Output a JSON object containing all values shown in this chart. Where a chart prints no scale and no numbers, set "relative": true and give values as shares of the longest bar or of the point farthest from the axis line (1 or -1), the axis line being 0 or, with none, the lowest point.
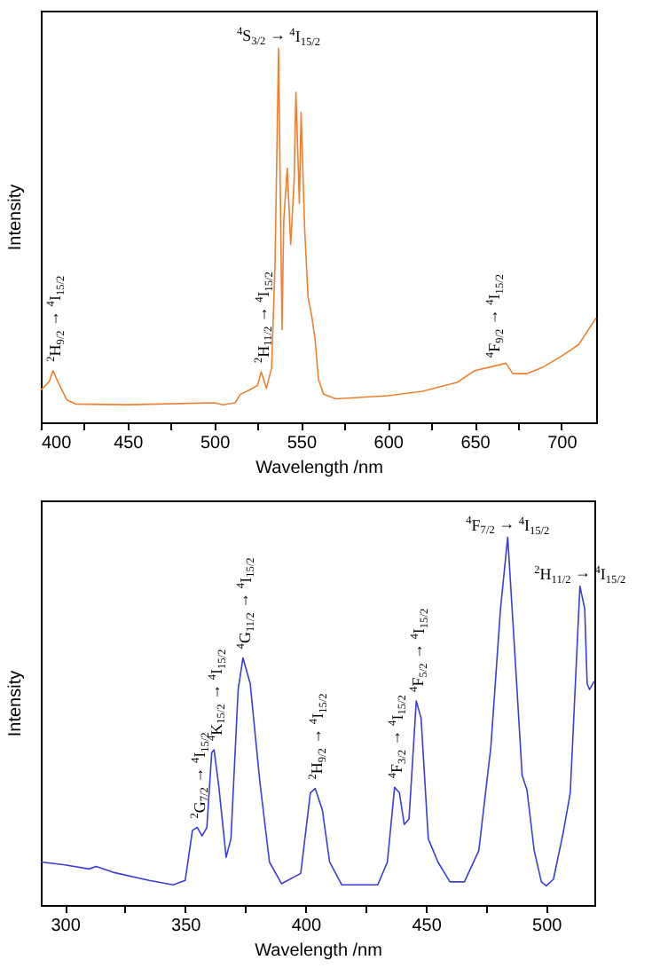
{
  "chart_data": [
    {
      "type": "line",
      "relative": true,
      "xlabel": "Wavelength /nm",
      "ylabel": "Intensity",
      "tick_labels": "x",
      "xlim": [
        400,
        720
      ],
      "xticks": [
        400,
        {
          "value": 425,
          "label": null
        },
        450,
        {
          "value": 475,
          "label": null
        },
        500,
        {
          "value": 525,
          "label": null
        },
        550,
        {
          "value": 575,
          "label": null
        },
        600,
        {
          "value": 625,
          "label": null
        },
        650,
        {
          "value": 675,
          "label": null
        },
        700
      ],
      "x": [
        400,
        405,
        407,
        410,
        415,
        420,
        450,
        500,
        505,
        512,
        515,
        520,
        525,
        527,
        530,
        533,
        535,
        537,
        539,
        540,
        542,
        544,
        546,
        547,
        549,
        550,
        552,
        554,
        556,
        558,
        560,
        563,
        570,
        600,
        620,
        640,
        650,
        660,
        668,
        672,
        680,
        690,
        700,
        710,
        720
      ],
      "series": [
        {
          "color": "#f08030",
          "values": [
            0.086,
            0.11,
            0.138,
            0.107,
            0.06,
            0.049,
            0.047,
            0.052,
            0.047,
            0.052,
            0.075,
            0.086,
            0.099,
            0.135,
            0.091,
            0.146,
            0.428,
            1,
            0.248,
            0.539,
            0.679,
            0.475,
            0.649,
            0.882,
            0.585,
            0.828,
            0.522,
            0.334,
            0.287,
            0.224,
            0.114,
            0.075,
            0.063,
            0.071,
            0.083,
            0.107,
            0.138,
            0.149,
            0.158,
            0.13,
            0.13,
            0.149,
            0.177,
            0.208,
            0.279
          ]
        }
      ],
      "annotations": [
        {
          "text": "$^{2}$H$_{9/2}$ → $^{4}$I$_{15/2}$",
          "x": 407,
          "y": 0.138
        },
        {
          "text": "$^{4}$S$_{3/2}$ → $^{4}$I$_{15/2}$",
          "x": 537,
          "y": 1
        },
        {
          "text": "$^{2}$H$_{11/2}$ → $^{4}$I$_{15/2}$",
          "x": 527,
          "y": 0.135
        },
        {
          "text": "$^{4}$F$_{9/2}$ → $^{4}$I$_{15/2}$",
          "x": 660,
          "y": 0.149
        }
      ]
    },
    {
      "type": "line",
      "relative": true,
      "xlabel": "Wavelength /nm",
      "ylabel": "Intensity",
      "tick_labels": "x",
      "xlim": [
        290,
        520
      ],
      "xticks": [
        300,
        {
          "value": 325,
          "label": null
        },
        350,
        {
          "value": 375,
          "label": null
        },
        400,
        {
          "value": 425,
          "label": null
        },
        450,
        {
          "value": 475,
          "label": null
        },
        500
      ],
      "x": [
        290,
        300,
        310,
        313,
        320,
        335,
        345,
        350,
        353,
        355,
        357,
        359,
        361,
        362,
        364,
        367,
        369,
        372,
        374,
        377,
        381,
        385,
        390,
        398,
        402,
        404,
        407,
        410,
        415,
        430,
        434,
        437,
        439,
        441,
        443,
        446,
        448,
        451,
        455,
        460,
        466,
        472,
        477,
        481,
        484,
        487,
        490,
        492,
        495,
        498,
        500,
        503,
        507,
        510,
        512,
        514,
        516,
        517,
        518,
        520
      ],
      "series": [
        {
          "color": "#3c3cd8",
          "values": [
            0.117,
            0.109,
            0.098,
            0.105,
            0.089,
            0.067,
            0.055,
            0.067,
            0.203,
            0.211,
            0.188,
            0.211,
            0.414,
            0.422,
            0.32,
            0.13,
            0.18,
            0.586,
            0.672,
            0.602,
            0.336,
            0.117,
            0.058,
            0.086,
            0.305,
            0.317,
            0.258,
            0.117,
            0.055,
            0.055,
            0.117,
            0.32,
            0.305,
            0.219,
            0.234,
            0.555,
            0.508,
            0.18,
            0.117,
            0.063,
            0.063,
            0.148,
            0.43,
            0.805,
            1,
            0.68,
            0.352,
            0.313,
            0.148,
            0.063,
            0.052,
            0.07,
            0.195,
            0.305,
            0.586,
            0.867,
            0.805,
            0.602,
            0.586,
            0.609
          ]
        }
      ],
      "annotations": [
        {
          "text": "$^{2}$G$_{7/2}$ → $^{4}$I$_{15/2}$",
          "x": 355,
          "y": 0.211
        },
        {
          "text": "$^{4}$K$_{15/2}$ → $^{4}$I$_{15/2}$",
          "x": 362,
          "y": 0.422
        },
        {
          "text": "$^{4}$G$_{11/2}$ → $^{4}$I$_{15/2}$",
          "x": 374,
          "y": 0.672
        },
        {
          "text": "$^{2}$H$_{9/2}$ → $^{4}$I$_{15/2}$",
          "x": 404,
          "y": 0.317
        },
        {
          "text": "$^{4}$F$_{3/2}$ → $^{4}$I$_{15/2}$",
          "x": 437,
          "y": 0.32
        },
        {
          "text": "$^{4}$F$_{5/2}$ → $^{4}$I$_{15/2}$",
          "x": 446,
          "y": 0.555
        },
        {
          "text": "$^{4}$F$_{7/2}$ → $^{4}$I$_{15/2}$",
          "x": 484,
          "y": 1
        },
        {
          "text": "$^{2}$H$_{11/2}$ → $^{4}$I$_{15/2}$",
          "x": 514,
          "y": 0.867
        }
      ]
    }
  ]
}
